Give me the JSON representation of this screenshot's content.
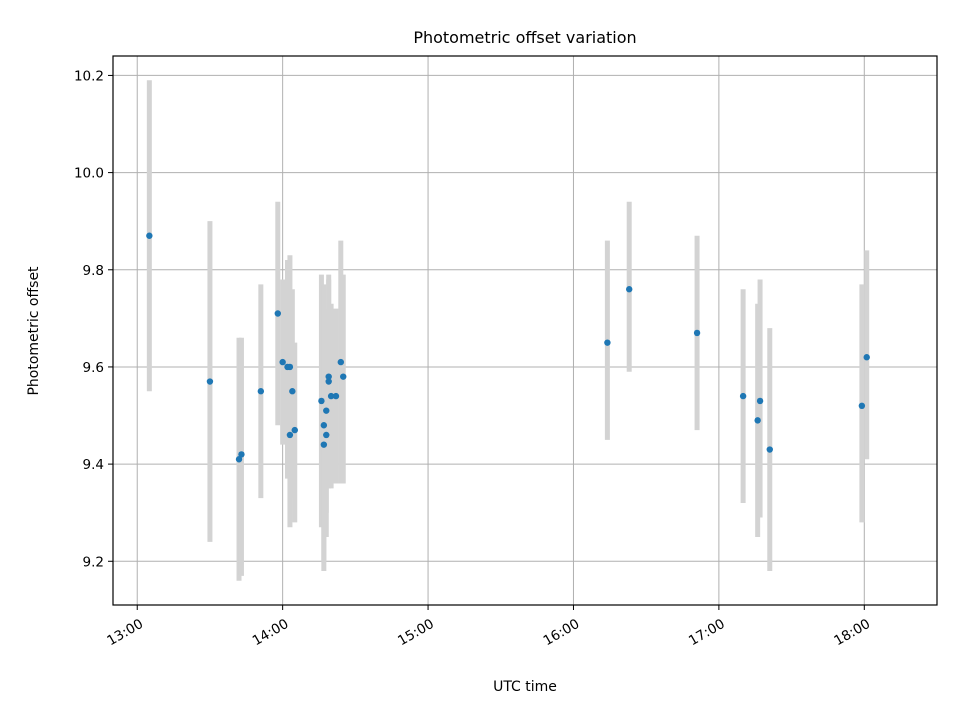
{
  "chart_data": {
    "type": "scatter",
    "title": "Photometric offset variation",
    "xlabel": "UTC time",
    "ylabel": "Photometric offset",
    "x_unit": "UTC time (HH:MM)",
    "xlim": [
      "12:50",
      "18:30"
    ],
    "ylim": [
      9.11,
      10.24
    ],
    "x_ticks": [
      "13:00",
      "14:00",
      "15:00",
      "16:00",
      "17:00",
      "18:00"
    ],
    "y_ticks": [
      9.2,
      9.4,
      9.6,
      9.8,
      10.0,
      10.2
    ],
    "y_tick_labels": [
      "9.2",
      "9.4",
      "9.6",
      "9.8",
      "10.0",
      "10.2"
    ],
    "grid": true,
    "legend": "none",
    "colors": {
      "marker": "#1f77b4",
      "errorbar": "#d3d3d3",
      "grid": "#b0b0b0"
    },
    "points": [
      {
        "t": "13:05",
        "y": 9.87,
        "lo": 9.55,
        "hi": 10.19
      },
      {
        "t": "13:30",
        "y": 9.57,
        "lo": 9.24,
        "hi": 9.9
      },
      {
        "t": "13:42",
        "y": 9.41,
        "lo": 9.16,
        "hi": 9.66
      },
      {
        "t": "13:43",
        "y": 9.42,
        "lo": 9.17,
        "hi": 9.66
      },
      {
        "t": "13:51",
        "y": 9.55,
        "lo": 9.33,
        "hi": 9.77
      },
      {
        "t": "13:58",
        "y": 9.71,
        "lo": 9.48,
        "hi": 9.94
      },
      {
        "t": "14:00",
        "y": 9.61,
        "lo": 9.44,
        "hi": 9.78
      },
      {
        "t": "14:02",
        "y": 9.6,
        "lo": 9.37,
        "hi": 9.82
      },
      {
        "t": "14:03",
        "y": 9.6,
        "lo": 9.37,
        "hi": 9.83
      },
      {
        "t": "14:03",
        "y": 9.46,
        "lo": 9.27,
        "hi": 9.65
      },
      {
        "t": "14:04",
        "y": 9.55,
        "lo": 9.33,
        "hi": 9.76
      },
      {
        "t": "14:05",
        "y": 9.47,
        "lo": 9.28,
        "hi": 9.65
      },
      {
        "t": "14:16",
        "y": 9.53,
        "lo": 9.27,
        "hi": 9.79
      },
      {
        "t": "14:17",
        "y": 9.48,
        "lo": 9.2,
        "hi": 9.77
      },
      {
        "t": "14:17",
        "y": 9.44,
        "lo": 9.18,
        "hi": 9.69
      },
      {
        "t": "14:18",
        "y": 9.46,
        "lo": 9.25,
        "hi": 9.68
      },
      {
        "t": "14:18",
        "y": 9.51,
        "lo": 9.3,
        "hi": 9.72
      },
      {
        "t": "14:19",
        "y": 9.57,
        "lo": 9.35,
        "hi": 9.79
      },
      {
        "t": "14:19",
        "y": 9.58,
        "lo": 9.38,
        "hi": 9.78
      },
      {
        "t": "14:20",
        "y": 9.54,
        "lo": 9.35,
        "hi": 9.73
      },
      {
        "t": "14:22",
        "y": 9.54,
        "lo": 9.36,
        "hi": 9.72
      },
      {
        "t": "14:24",
        "y": 9.61,
        "lo": 9.36,
        "hi": 9.86
      },
      {
        "t": "14:25",
        "y": 9.58,
        "lo": 9.36,
        "hi": 9.79
      },
      {
        "t": "16:14",
        "y": 9.65,
        "lo": 9.45,
        "hi": 9.86
      },
      {
        "t": "16:23",
        "y": 9.76,
        "lo": 9.59,
        "hi": 9.94
      },
      {
        "t": "16:51",
        "y": 9.67,
        "lo": 9.47,
        "hi": 9.87
      },
      {
        "t": "17:10",
        "y": 9.54,
        "lo": 9.32,
        "hi": 9.76
      },
      {
        "t": "17:16",
        "y": 9.49,
        "lo": 9.25,
        "hi": 9.73
      },
      {
        "t": "17:17",
        "y": 9.53,
        "lo": 9.29,
        "hi": 9.78
      },
      {
        "t": "17:21",
        "y": 9.43,
        "lo": 9.18,
        "hi": 9.68
      },
      {
        "t": "17:59",
        "y": 9.52,
        "lo": 9.28,
        "hi": 9.77
      },
      {
        "t": "18:01",
        "y": 9.62,
        "lo": 9.41,
        "hi": 9.84
      }
    ]
  }
}
